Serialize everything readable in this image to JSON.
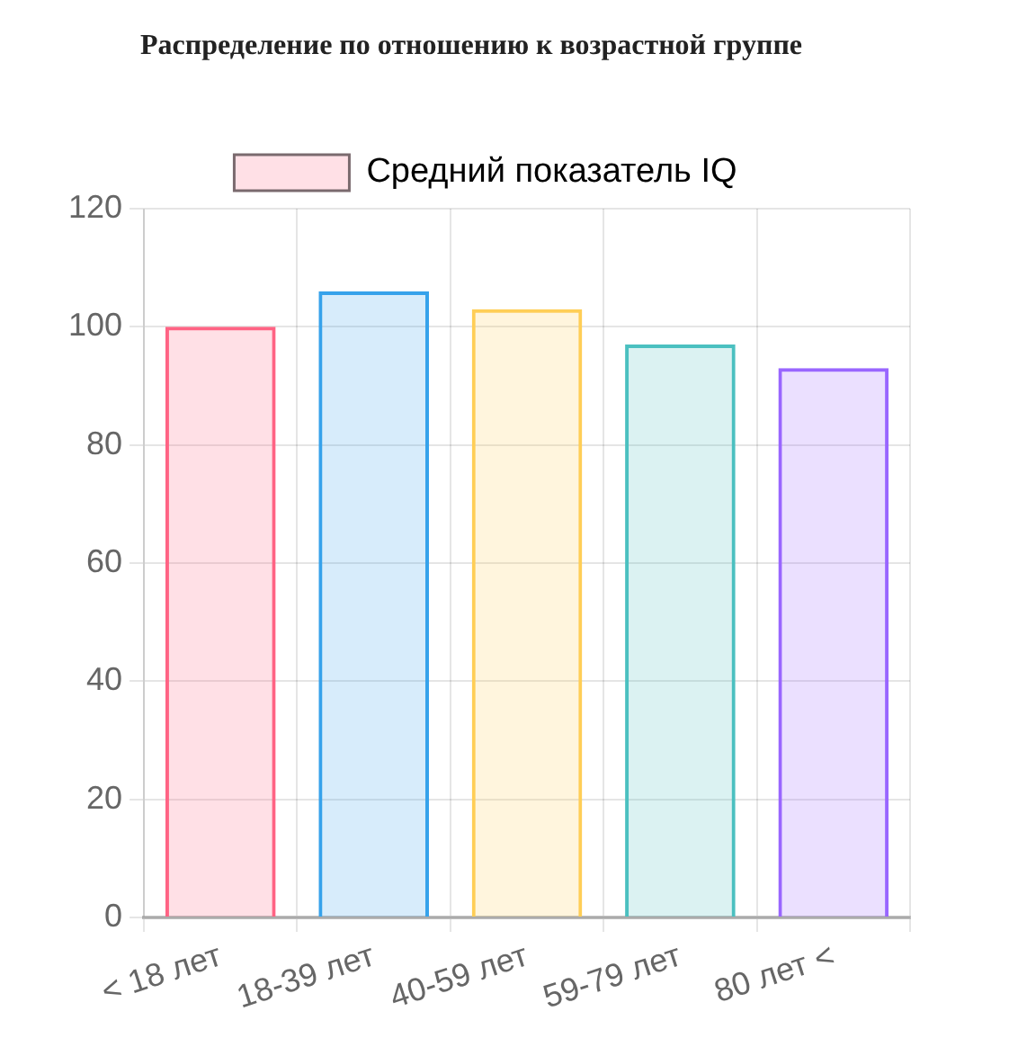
{
  "chart_data": {
    "type": "bar",
    "title": "Распределение по отношению к возрастной группе",
    "categories": [
      "< 18 лет",
      "18-39 лет",
      "40-59 лет",
      "59-79 лет",
      "80 лет <"
    ],
    "series": [
      {
        "name": "Средний показатель IQ",
        "color": "#ff6384",
        "values": [
          100,
          106,
          103,
          97,
          93
        ],
        "colors": [
          "#ff6384",
          "#36a2eb",
          "#ffce56",
          "#4bc0c0",
          "#9966ff"
        ]
      }
    ],
    "ylim": [
      0,
      120
    ],
    "yticks": [
      0,
      20,
      40,
      60,
      80,
      100,
      120
    ],
    "grid": true,
    "legend": "top"
  }
}
